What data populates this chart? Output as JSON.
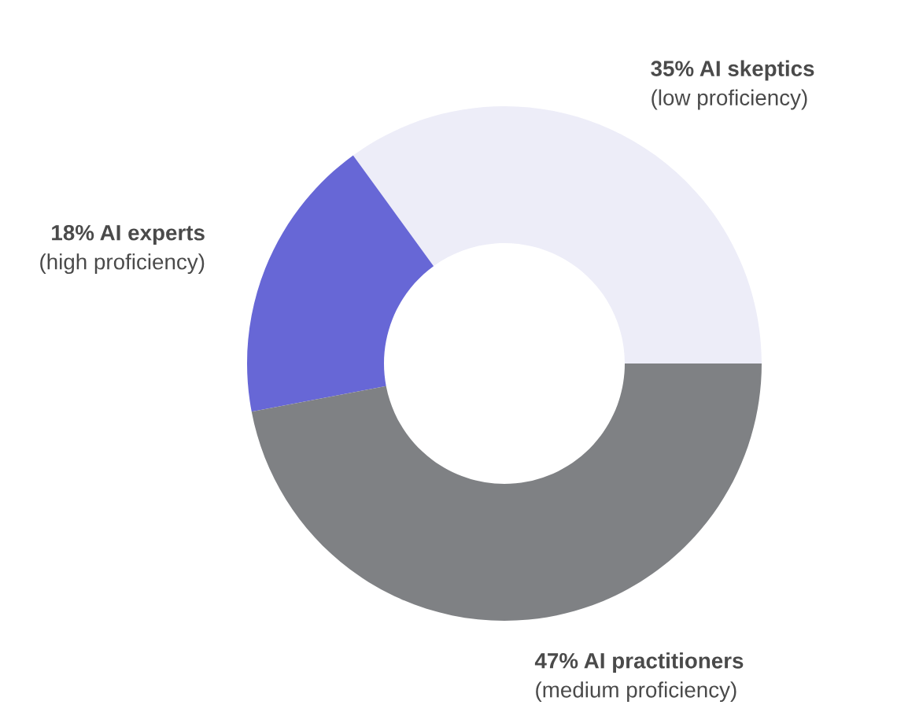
{
  "chart_data": {
    "type": "donut",
    "categories": [
      "AI skeptics\n(low proficiency)",
      "AI experts\n(high proficiency)",
      "AI practitioners\n(medium proficiency)"
    ],
    "values": [
      35,
      18,
      47
    ],
    "value_labels": [
      "35%",
      "18%",
      "47%"
    ],
    "colors": [
      "#ededf8",
      "#6767d6",
      "#7f8184"
    ],
    "legend": false
  }
}
